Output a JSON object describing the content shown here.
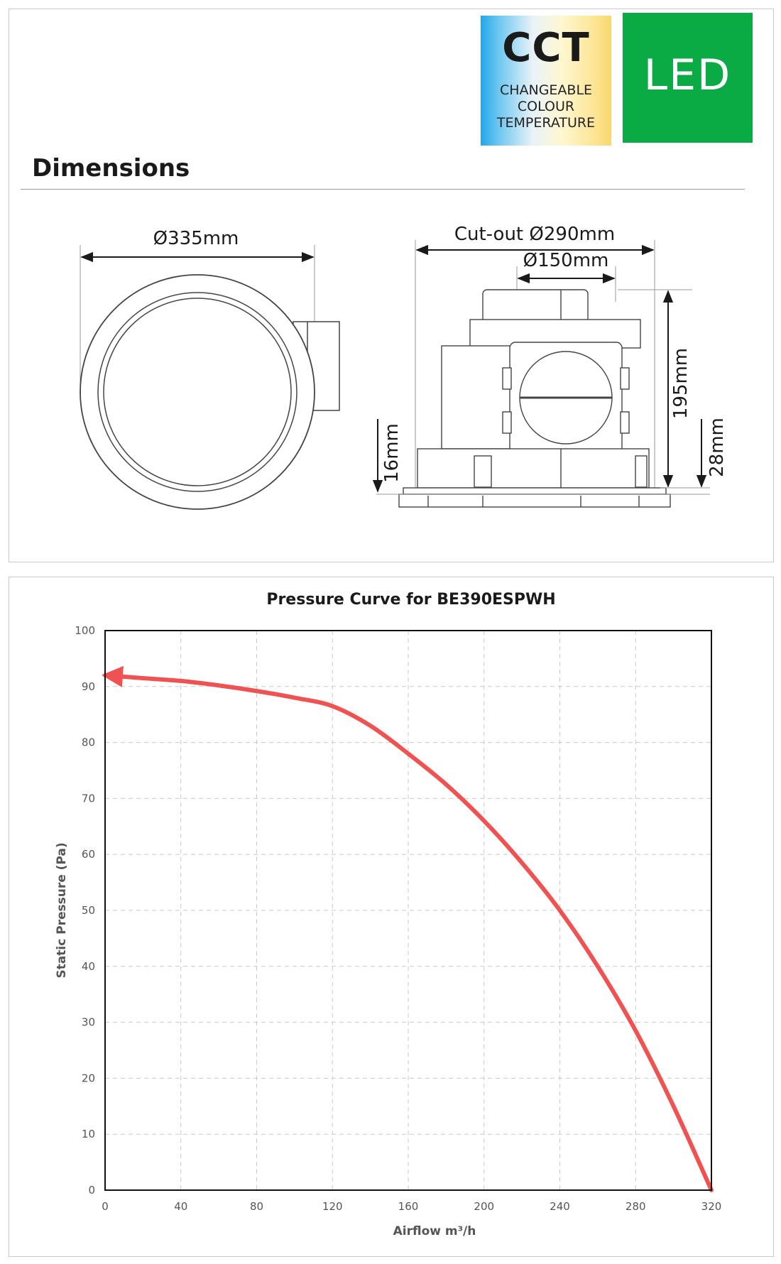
{
  "badges": {
    "cct": {
      "title": "CCT",
      "lines": [
        "CHANGEABLE",
        "COLOUR",
        "TEMPERATURE"
      ]
    },
    "led": {
      "text": "LED"
    }
  },
  "dimensions": {
    "heading": "Dimensions",
    "labels": {
      "front_diameter": "Ø335mm",
      "cutout": "Cut-out Ø290mm",
      "duct": "Ø150mm",
      "height": "195mm",
      "flange": "28mm",
      "bottom": "16mm"
    }
  },
  "chart_data": {
    "type": "line",
    "title": "Pressure Curve for BE390ESPWH",
    "xlabel": "Airflow m³/h",
    "ylabel": "Static Pressure (Pa)",
    "xlim": [
      0,
      320
    ],
    "ylim": [
      0,
      100
    ],
    "xticks": [
      0,
      40,
      80,
      120,
      160,
      200,
      240,
      280,
      320
    ],
    "yticks": [
      0,
      10,
      20,
      30,
      40,
      50,
      60,
      70,
      80,
      90,
      100
    ],
    "grid": true,
    "series": [
      {
        "color": "#f05252",
        "x": [
          0,
          20,
          40,
          60,
          80,
          100,
          120,
          140,
          160,
          180,
          200,
          220,
          240,
          260,
          280,
          300,
          320
        ],
        "y": [
          92,
          91.5,
          91,
          90.2,
          89.2,
          88,
          86.5,
          83,
          78,
          72.5,
          66,
          58.5,
          50,
          40,
          28.5,
          15,
          0
        ]
      }
    ]
  }
}
